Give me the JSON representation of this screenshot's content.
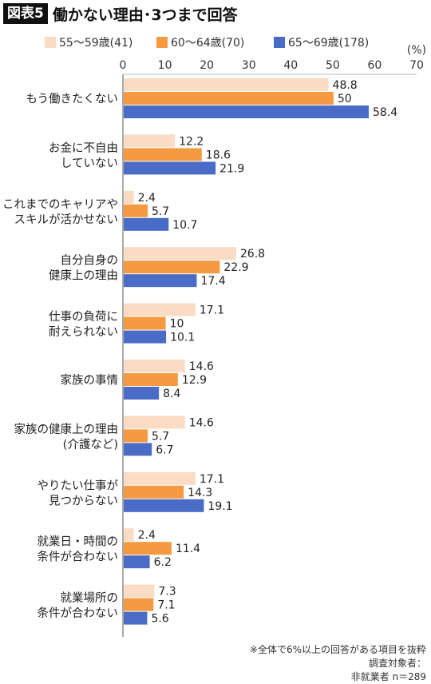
{
  "figure_label": "図表5",
  "title": "働かない理由･3つまで回答",
  "unit": "(%)",
  "colors": {
    "s55": "#f9dcc3",
    "s60": "#f59a40",
    "s65": "#4a6cc6"
  },
  "chart_data": {
    "type": "bar",
    "orientation": "horizontal",
    "title": "働かない理由･3つまで回答",
    "xlabel": "(%)",
    "xlim": [
      0,
      70
    ],
    "xticks": [
      "0",
      "10",
      "20",
      "30",
      "40",
      "50",
      "60",
      "70"
    ],
    "grid": false,
    "legend_position": "top",
    "categories": [
      [
        "もう働きたくない"
      ],
      [
        "お金に不自由",
        "していない"
      ],
      [
        "これまでのキャリアや",
        "スキルが活かせない"
      ],
      [
        "自分自身の",
        "健康上の理由"
      ],
      [
        "仕事の負荷に",
        "耐えられない"
      ],
      [
        "家族の事情"
      ],
      [
        "家族の健康上の理由",
        "(介護など)"
      ],
      [
        "やりたい仕事が",
        "見つからない"
      ],
      [
        "就業日・時間の",
        "条件が合わない"
      ],
      [
        "就業場所の",
        "条件が合わない"
      ]
    ],
    "series": [
      {
        "name": "55〜59歳(41)",
        "values": [
          48.8,
          12.2,
          2.4,
          26.8,
          17.1,
          14.6,
          14.6,
          17.1,
          2.4,
          7.3
        ],
        "labels": [
          "48.8",
          "12.2",
          "2.4",
          "26.8",
          "17.1",
          "14.6",
          "14.6",
          "17.1",
          "2.4",
          "7.3"
        ]
      },
      {
        "name": "60〜64歳(70)",
        "values": [
          50,
          18.6,
          5.7,
          22.9,
          10,
          12.9,
          5.7,
          14.3,
          11.4,
          7.1
        ],
        "labels": [
          "50",
          "18.6",
          "5.7",
          "22.9",
          "10",
          "12.9",
          "5.7",
          "14.3",
          "11.4",
          "7.1"
        ]
      },
      {
        "name": "65〜69歳(178)",
        "values": [
          58.4,
          21.9,
          10.7,
          17.4,
          10.1,
          8.4,
          6.7,
          19.1,
          6.2,
          5.6
        ],
        "labels": [
          "58.4",
          "21.9",
          "10.7",
          "17.4",
          "10.1",
          "8.4",
          "6.7",
          "19.1",
          "6.2",
          "5.6"
        ]
      }
    ]
  },
  "notes": {
    "line1": "※全体で6%以上の回答がある項目を抜粋",
    "line2": "調査対象者：",
    "line3": "非就業者 n＝289"
  }
}
